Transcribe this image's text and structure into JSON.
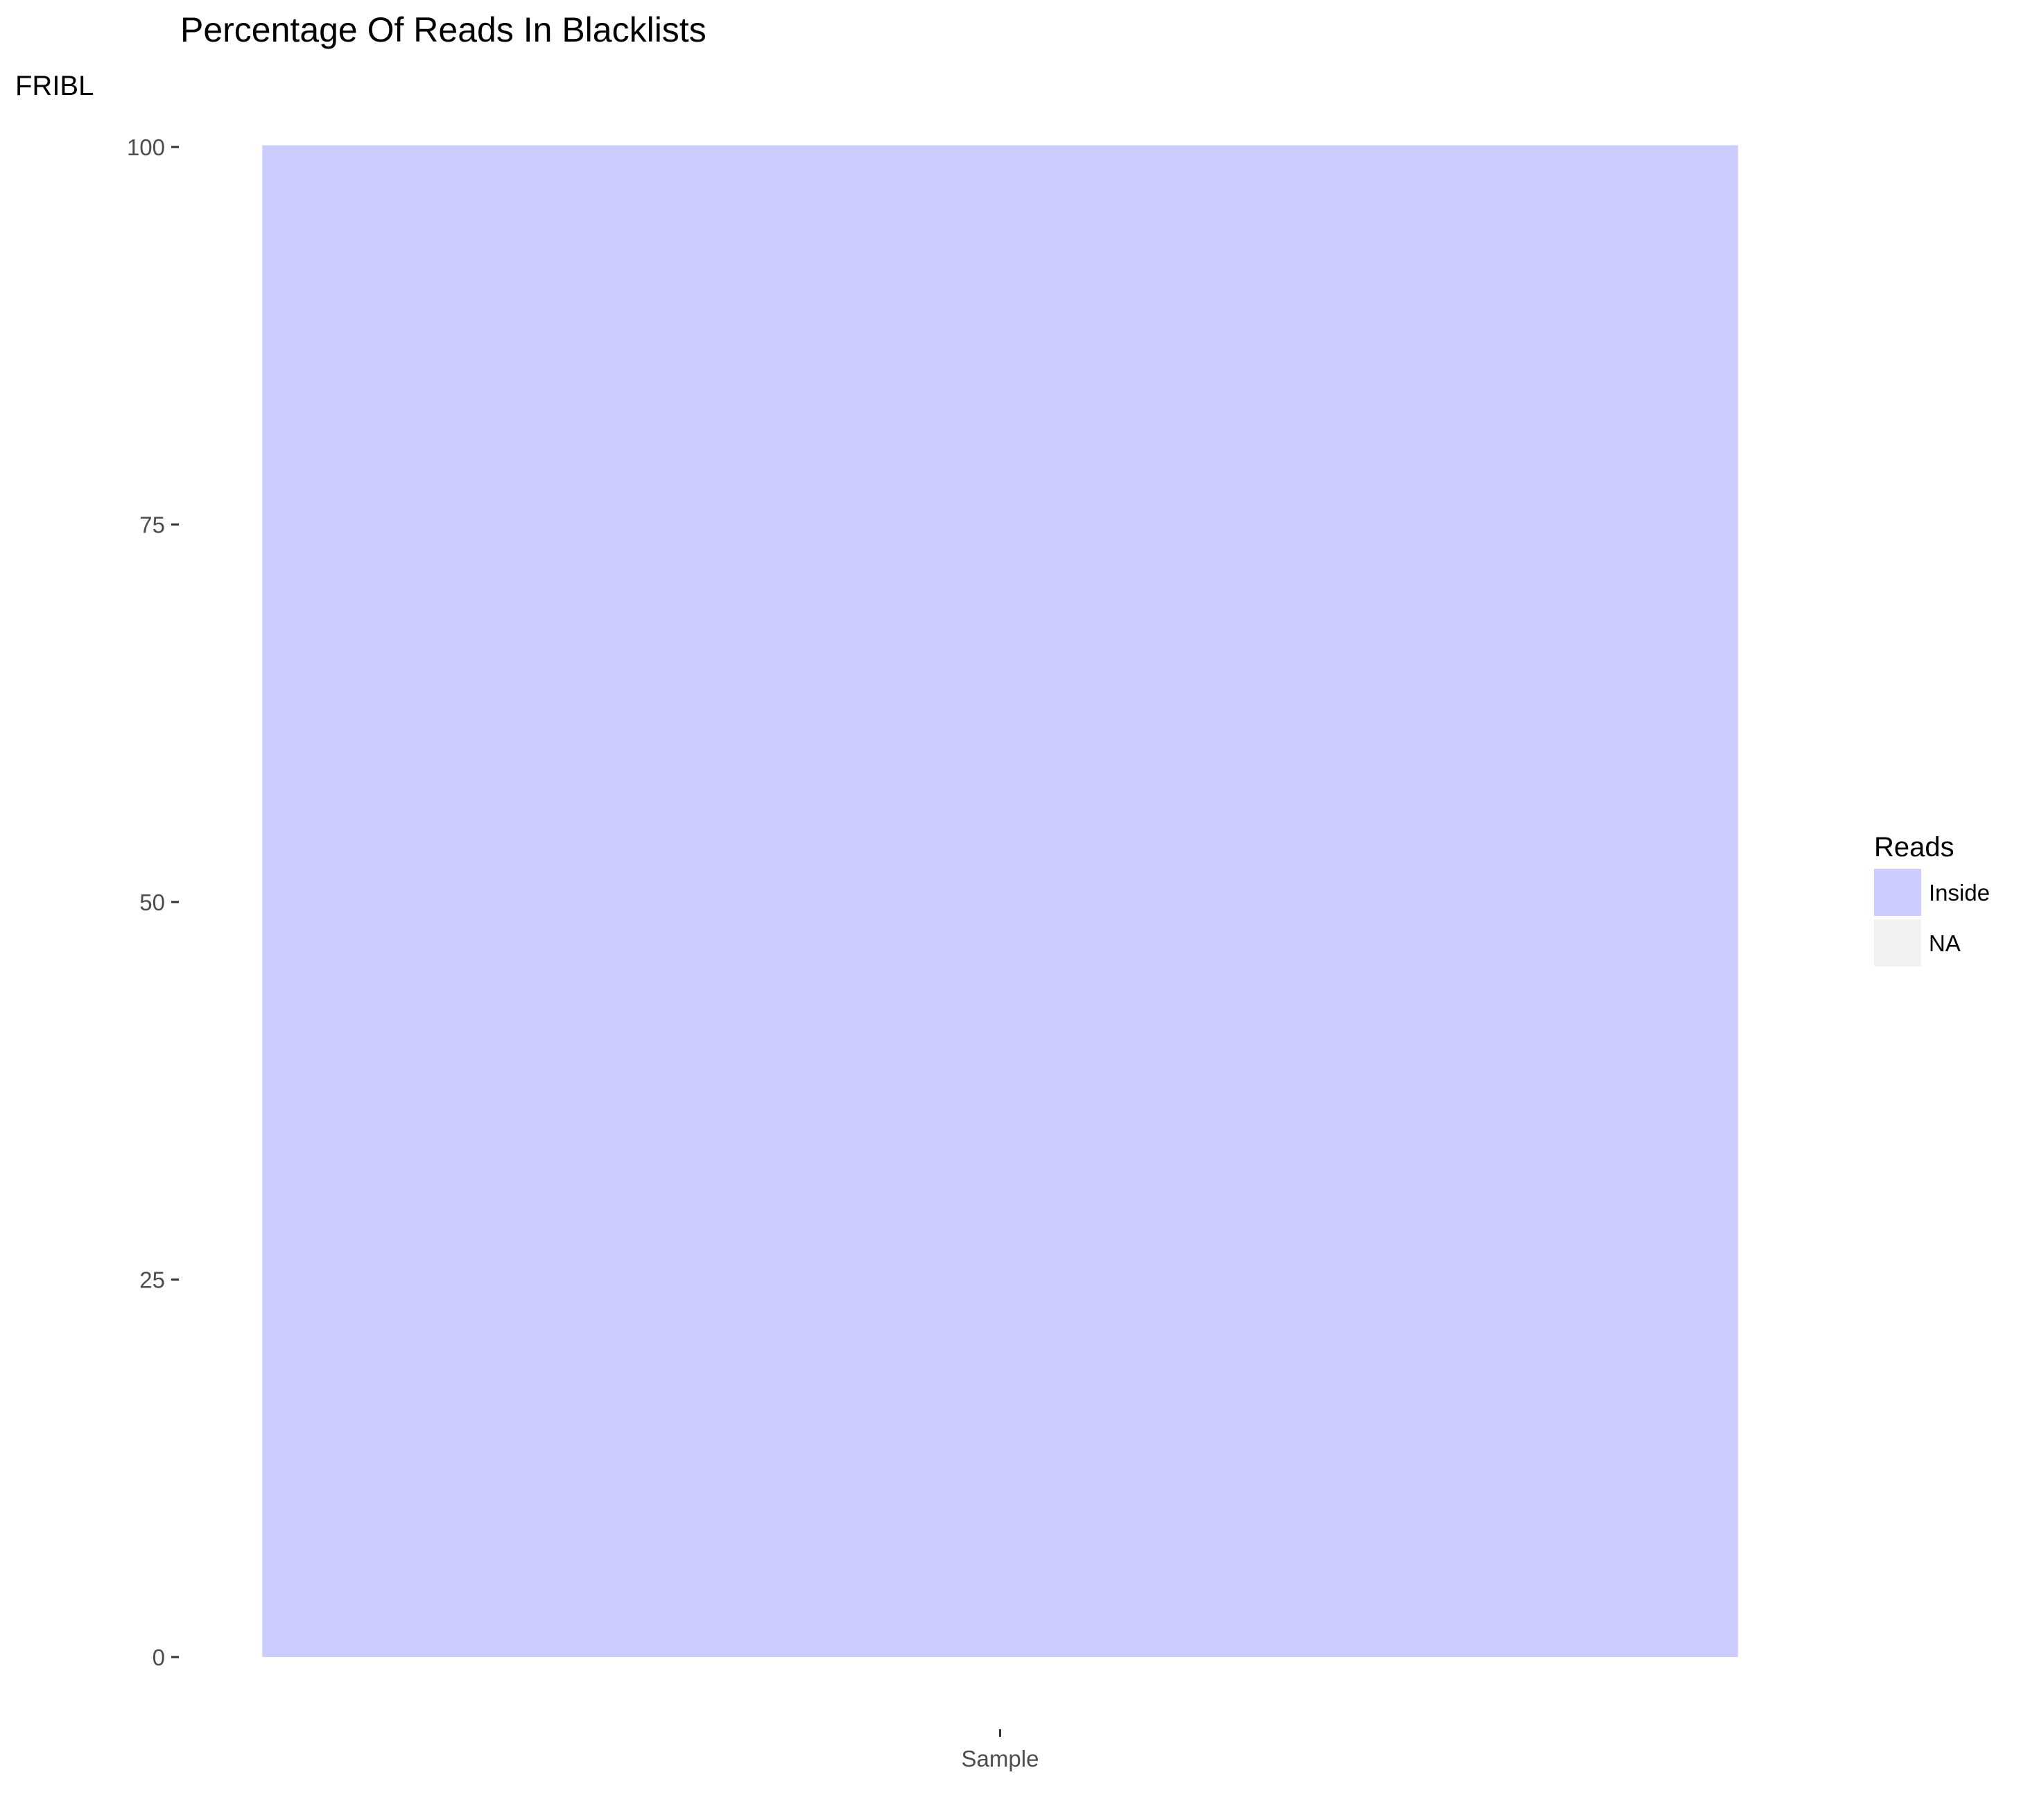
{
  "chart_data": {
    "type": "bar",
    "title": "Percentage Of Reads In Blacklists",
    "xlabel": "",
    "ylabel": "FRIBL",
    "categories": [
      "Sample"
    ],
    "series": [
      {
        "name": "Inside",
        "values": [
          100
        ],
        "color": "#ccccff"
      },
      {
        "name": "NA",
        "values": [
          0
        ],
        "color": "#f2f2f2"
      }
    ],
    "stacked": true,
    "ylim": [
      0,
      100
    ],
    "yticks": [
      0,
      25,
      50,
      75,
      100
    ],
    "ytick_labels": [
      "0",
      "25",
      "50",
      "75",
      "100"
    ],
    "grid": false,
    "legend": {
      "title": "Reads",
      "position": "right",
      "entries": [
        {
          "label": "Inside",
          "color": "#ccccff"
        },
        {
          "label": "NA",
          "color": "#f2f2f2"
        }
      ]
    }
  }
}
